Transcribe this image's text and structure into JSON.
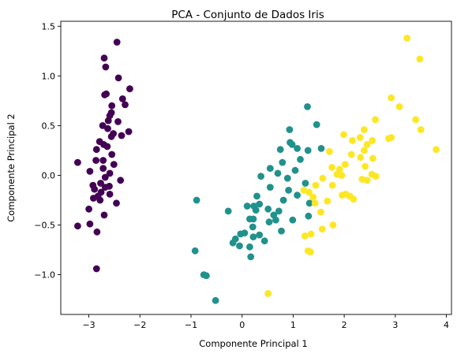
{
  "chart_data": {
    "type": "scatter",
    "title": "PCA - Conjunto de Dados Iris",
    "xlabel": "Componente Principal 1",
    "ylabel": "Componente Principal 2",
    "xlim": [
      -3.55,
      4.1
    ],
    "ylim": [
      -1.4,
      1.55
    ],
    "xticks": [
      -3,
      -2,
      -1,
      0,
      1,
      2,
      3,
      4
    ],
    "xtick_labels": [
      "−3",
      "−2",
      "−1",
      "0",
      "1",
      "2",
      "3",
      "4"
    ],
    "yticks": [
      -1.0,
      -0.5,
      0.0,
      0.5,
      1.0,
      1.5
    ],
    "ytick_labels": [
      "−1.0",
      "−0.5",
      "0.0",
      "0.5",
      "1.0",
      "1.5"
    ],
    "grid": false,
    "legend": false,
    "series": [
      {
        "color": "#440154",
        "points": [
          [
            -2.45,
            1.34
          ],
          [
            -2.7,
            1.18
          ],
          [
            -2.67,
            1.09
          ],
          [
            -2.42,
            0.98
          ],
          [
            -2.2,
            0.87
          ],
          [
            -2.66,
            0.82
          ],
          [
            -2.69,
            0.81
          ],
          [
            -2.34,
            0.77
          ],
          [
            -2.29,
            0.71
          ],
          [
            -2.55,
            0.7
          ],
          [
            -2.56,
            0.63
          ],
          [
            -2.59,
            0.6
          ],
          [
            -2.62,
            0.55
          ],
          [
            -2.43,
            0.54
          ],
          [
            -2.73,
            0.5
          ],
          [
            -2.63,
            0.47
          ],
          [
            -2.52,
            0.42
          ],
          [
            -2.36,
            0.4
          ],
          [
            -2.56,
            0.39
          ],
          [
            -2.22,
            0.44
          ],
          [
            -2.79,
            0.34
          ],
          [
            -2.71,
            0.31
          ],
          [
            -2.64,
            0.29
          ],
          [
            -2.85,
            0.26
          ],
          [
            -2.55,
            0.21
          ],
          [
            -2.72,
            0.15
          ],
          [
            -2.86,
            0.15
          ],
          [
            -3.22,
            0.13
          ],
          [
            -2.51,
            0.11
          ],
          [
            -2.72,
            0.07
          ],
          [
            -2.98,
            0.04
          ],
          [
            -2.59,
            0.02
          ],
          [
            -2.68,
            -0.02
          ],
          [
            -2.38,
            -0.05
          ],
          [
            -2.77,
            -0.08
          ],
          [
            -2.92,
            -0.1
          ],
          [
            -2.6,
            -0.11
          ],
          [
            -2.68,
            -0.12
          ],
          [
            -2.89,
            -0.14
          ],
          [
            -2.76,
            -0.17
          ],
          [
            -2.59,
            -0.19
          ],
          [
            -2.82,
            -0.21
          ],
          [
            -2.91,
            -0.23
          ],
          [
            -2.78,
            -0.25
          ],
          [
            -2.46,
            -0.28
          ],
          [
            -3.0,
            -0.34
          ],
          [
            -2.7,
            -0.4
          ],
          [
            -2.98,
            -0.49
          ],
          [
            -3.22,
            -0.51
          ],
          [
            -2.84,
            -0.57
          ],
          [
            -2.85,
            -0.94
          ]
        ]
      },
      {
        "color": "#21918c",
        "points": [
          [
            1.28,
            0.69
          ],
          [
            1.46,
            0.51
          ],
          [
            0.93,
            0.46
          ],
          [
            0.94,
            0.33
          ],
          [
            0.98,
            0.31
          ],
          [
            1.08,
            0.27
          ],
          [
            1.29,
            0.25
          ],
          [
            1.55,
            0.27
          ],
          [
            0.75,
            0.26
          ],
          [
            1.14,
            0.16
          ],
          [
            0.79,
            0.13
          ],
          [
            0.55,
            0.07
          ],
          [
            1.04,
            0.05
          ],
          [
            0.7,
            0.02
          ],
          [
            0.37,
            -0.01
          ],
          [
            0.89,
            -0.03
          ],
          [
            1.24,
            -0.08
          ],
          [
            0.55,
            -0.12
          ],
          [
            0.91,
            -0.15
          ],
          [
            0.29,
            -0.21
          ],
          [
            1.08,
            -0.2
          ],
          [
            -0.89,
            -0.25
          ],
          [
            0.81,
            -0.25
          ],
          [
            0.34,
            -0.29
          ],
          [
            1.32,
            -0.28
          ],
          [
            0.23,
            -0.31
          ],
          [
            0.1,
            -0.31
          ],
          [
            0.51,
            -0.34
          ],
          [
            0.27,
            -0.35
          ],
          [
            0.72,
            -0.36
          ],
          [
            -0.27,
            -0.36
          ],
          [
            1.3,
            -0.41
          ],
          [
            0.62,
            -0.4
          ],
          [
            0.22,
            -0.44
          ],
          [
            0.15,
            -0.44
          ],
          [
            0.66,
            -0.45
          ],
          [
            0.99,
            -0.45
          ],
          [
            0.53,
            -0.47
          ],
          [
            0.21,
            -0.52
          ],
          [
            0.77,
            -0.56
          ],
          [
            0.05,
            -0.58
          ],
          [
            -0.03,
            -0.59
          ],
          [
            0.34,
            -0.6
          ],
          [
            0.22,
            -0.62
          ],
          [
            -0.13,
            -0.64
          ],
          [
            0.44,
            -0.66
          ],
          [
            -0.18,
            -0.68
          ],
          [
            -0.05,
            -0.71
          ],
          [
            0.15,
            -0.72
          ],
          [
            0.17,
            -0.82
          ],
          [
            -0.92,
            -0.76
          ],
          [
            -0.75,
            -1.0
          ],
          [
            -0.7,
            -1.01
          ],
          [
            -0.52,
            -1.26
          ]
        ]
      },
      {
        "color": "#fde725",
        "points": [
          [
            3.23,
            1.38
          ],
          [
            3.48,
            1.17
          ],
          [
            2.92,
            0.78
          ],
          [
            3.08,
            0.69
          ],
          [
            3.4,
            0.56
          ],
          [
            2.61,
            0.56
          ],
          [
            3.5,
            0.46
          ],
          [
            2.39,
            0.46
          ],
          [
            1.99,
            0.41
          ],
          [
            2.92,
            0.38
          ],
          [
            2.31,
            0.38
          ],
          [
            2.87,
            0.37
          ],
          [
            2.55,
            0.35
          ],
          [
            2.16,
            0.35
          ],
          [
            2.45,
            0.31
          ],
          [
            2.39,
            0.25
          ],
          [
            3.8,
            0.26
          ],
          [
            1.71,
            0.24
          ],
          [
            2.14,
            0.21
          ],
          [
            2.32,
            0.18
          ],
          [
            2.56,
            0.17
          ],
          [
            2.02,
            0.11
          ],
          [
            2.41,
            0.09
          ],
          [
            1.91,
            0.06
          ],
          [
            1.76,
            0.08
          ],
          [
            2.54,
            0.01
          ],
          [
            1.95,
            0.0
          ],
          [
            1.86,
            0.01
          ],
          [
            2.35,
            -0.04
          ],
          [
            2.62,
            -0.01
          ],
          [
            1.58,
            -0.03
          ],
          [
            2.45,
            -0.05
          ],
          [
            1.77,
            -0.1
          ],
          [
            1.44,
            -0.1
          ],
          [
            1.21,
            -0.15
          ],
          [
            1.31,
            -0.17
          ],
          [
            1.39,
            -0.22
          ],
          [
            2.11,
            -0.21
          ],
          [
            1.96,
            -0.2
          ],
          [
            1.43,
            -0.28
          ],
          [
            1.67,
            -0.26
          ],
          [
            2.18,
            -0.24
          ],
          [
            2.03,
            -0.19
          ],
          [
            1.54,
            -0.37
          ],
          [
            1.23,
            -0.61
          ],
          [
            1.78,
            -0.5
          ],
          [
            1.57,
            -0.54
          ],
          [
            1.35,
            -0.59
          ],
          [
            1.29,
            -0.76
          ],
          [
            1.34,
            -0.77
          ],
          [
            0.51,
            -1.19
          ]
        ]
      }
    ]
  }
}
